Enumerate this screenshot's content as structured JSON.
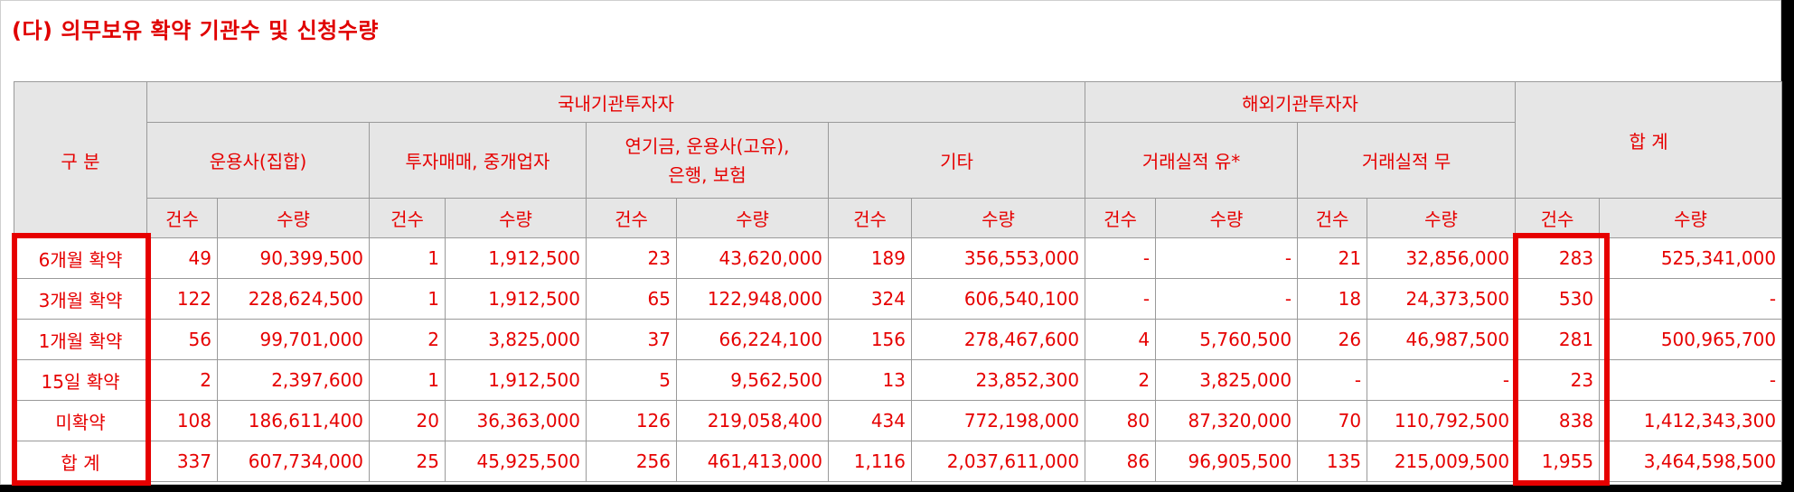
{
  "title": "(다) 의무보유 확약 기관수 및 신청수량",
  "table": {
    "corner_label": "구 분",
    "group_headers": [
      "국내기관투자자",
      "해외기관투자자",
      "합 계"
    ],
    "sub_headers": [
      "운용사(집합)",
      "투자매매, 중개업자",
      "연기금, 운용사(고유),\n은행, 보험",
      "기타",
      "거래실적 유*",
      "거래실적 무"
    ],
    "count_label": "건수",
    "qty_label": "수량",
    "rows": [
      {
        "label": "6개월 확약",
        "cells": [
          "49",
          "90,399,500",
          "1",
          "1,912,500",
          "23",
          "43,620,000",
          "189",
          "356,553,000",
          "-",
          "-",
          "21",
          "32,856,000",
          "283",
          "525,341,000"
        ]
      },
      {
        "label": "3개월 확약",
        "cells": [
          "122",
          "228,624,500",
          "1",
          "1,912,500",
          "65",
          "122,948,000",
          "324",
          "606,540,100",
          "-",
          "-",
          "18",
          "24,373,500",
          "530",
          "-"
        ]
      },
      {
        "label": "1개월 확약",
        "cells": [
          "56",
          "99,701,000",
          "2",
          "3,825,000",
          "37",
          "66,224,100",
          "156",
          "278,467,600",
          "4",
          "5,760,500",
          "26",
          "46,987,500",
          "281",
          "500,965,700"
        ]
      },
      {
        "label": "15일 확약",
        "cells": [
          "2",
          "2,397,600",
          "1",
          "1,912,500",
          "5",
          "9,562,500",
          "13",
          "23,852,300",
          "2",
          "3,825,000",
          "-",
          "-",
          "23",
          "-"
        ]
      },
      {
        "label": "미확약",
        "cells": [
          "108",
          "186,611,400",
          "20",
          "36,363,000",
          "126",
          "219,058,400",
          "434",
          "772,198,000",
          "80",
          "87,320,000",
          "70",
          "110,792,500",
          "838",
          "1,412,343,300"
        ]
      },
      {
        "label": "합 계",
        "cells": [
          "337",
          "607,734,000",
          "25",
          "45,925,500",
          "256",
          "461,413,000",
          "1,116",
          "2,037,611,000",
          "86",
          "96,905,500",
          "135",
          "215,009,500",
          "1,955",
          "3,464,598,500"
        ]
      }
    ]
  },
  "colors": {
    "text": "#e60000",
    "header_bg": "#e6e6e6",
    "highlight": "#e60000"
  }
}
